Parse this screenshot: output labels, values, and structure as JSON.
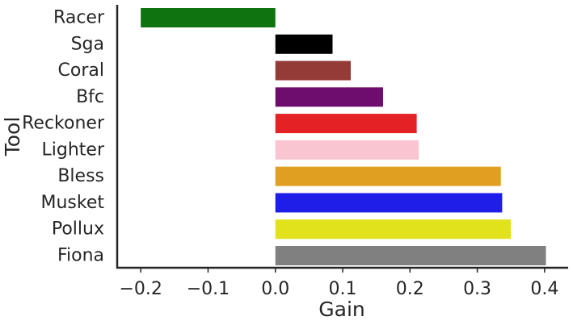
{
  "chart_data": {
    "type": "bar",
    "orientation": "horizontal",
    "xlabel": "Gain",
    "ylabel": "Tool",
    "xlim": [
      -0.235,
      0.435
    ],
    "xticks": [
      -0.2,
      -0.1,
      0.0,
      0.1,
      0.2,
      0.3,
      0.4
    ],
    "xtick_labels": [
      "−0.2",
      "−0.1",
      "0.0",
      "0.1",
      "0.2",
      "0.3",
      "0.4"
    ],
    "grid": false,
    "legend": false,
    "categories": [
      "Racer",
      "Sga",
      "Coral",
      "Bfc",
      "Reckoner",
      "Lighter",
      "Bless",
      "Musket",
      "Pollux",
      "Fiona"
    ],
    "values": [
      -0.2,
      0.085,
      0.112,
      0.16,
      0.21,
      0.213,
      0.335,
      0.337,
      0.35,
      0.402
    ],
    "colors": [
      "#0f740f",
      "#000000",
      "#943a37",
      "#6e0d6e",
      "#e42124",
      "#f8c5d0",
      "#e19f21",
      "#1e1ee8",
      "#e1e11c",
      "#808080"
    ]
  }
}
